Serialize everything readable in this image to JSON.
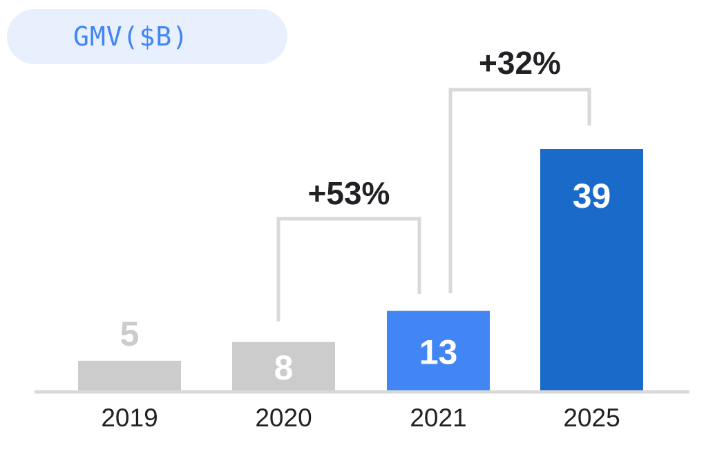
{
  "chart_data": {
    "type": "bar",
    "title": "GMV($B)",
    "categories": [
      "2019",
      "2020",
      "2021",
      "2025"
    ],
    "values": [
      5,
      8,
      13,
      39
    ],
    "value_labels": [
      "5",
      "8",
      "13",
      "39"
    ],
    "bar_colors": [
      "#cccccc",
      "#cccccc",
      "#4285f4",
      "#1a6bc9"
    ],
    "value_label_colors": [
      "#cccccc",
      "#ffffff",
      "#ffffff",
      "#ffffff"
    ],
    "value_label_position": [
      "above",
      "inside",
      "inside",
      "inside"
    ],
    "ylim": [
      0,
      39
    ],
    "grid": false,
    "legend": "none",
    "annotations": [
      {
        "label": "+53%",
        "from": "2020",
        "to": "2021"
      },
      {
        "label": "+32%",
        "from": "2021",
        "to": "2025"
      }
    ],
    "colors": {
      "title_text": "#4285f4",
      "title_background": "#e8f0fe",
      "axis": "#d9d9d9",
      "bracket": "#d9d9d9",
      "text": "#202124"
    }
  }
}
